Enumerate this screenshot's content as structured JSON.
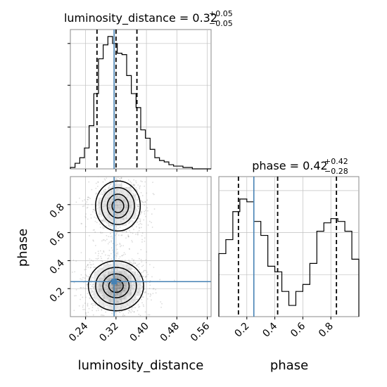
{
  "chart_data": [
    {
      "panel": "luminosity_distance-marginal",
      "type": "histogram",
      "title": {
        "prefix": "luminosity_distance = ",
        "value": "0.32",
        "plus": "+0.05",
        "minus": "−0.05"
      },
      "xlim": [
        0.2,
        0.57
      ],
      "ylim": [
        0,
        1.0
      ],
      "bins": [
        0.2,
        0.2123,
        0.2247,
        0.237,
        0.2493,
        0.2617,
        0.274,
        0.2863,
        0.2987,
        0.311,
        0.3233,
        0.3357,
        0.348,
        0.3603,
        0.3727,
        0.385,
        0.3973,
        0.4097,
        0.422,
        0.4343,
        0.4467,
        0.459,
        0.4713,
        0.4837,
        0.496,
        0.5083,
        0.5207,
        0.533,
        0.5453,
        0.5577,
        0.57
      ],
      "counts": [
        0.01,
        0.04,
        0.08,
        0.15,
        0.31,
        0.54,
        0.79,
        0.89,
        0.95,
        0.9,
        0.83,
        0.82,
        0.67,
        0.54,
        0.44,
        0.28,
        0.22,
        0.14,
        0.08,
        0.06,
        0.05,
        0.03,
        0.02,
        0.02,
        0.01,
        0.01,
        0.0,
        0.0,
        0.0,
        0.0
      ],
      "quantiles": [
        0.27,
        0.32,
        0.375
      ],
      "truth": 0.315,
      "xticks": [
        0.24,
        0.32,
        0.4,
        0.48,
        0.56
      ]
    },
    {
      "panel": "phase-marginal",
      "type": "histogram",
      "title": {
        "prefix": "phase = ",
        "value": "0.42",
        "plus": "+0.42",
        "minus": "−0.28"
      },
      "xlim": [
        0.0,
        1.0
      ],
      "ylim": [
        0,
        1.0
      ],
      "bins": [
        0.0,
        0.05,
        0.1,
        0.15,
        0.2,
        0.25,
        0.3,
        0.35,
        0.4,
        0.45,
        0.5,
        0.55,
        0.6,
        0.65,
        0.7,
        0.75,
        0.8,
        0.85,
        0.9,
        0.95,
        1.0
      ],
      "counts": [
        0.45,
        0.55,
        0.75,
        0.84,
        0.82,
        0.68,
        0.58,
        0.36,
        0.32,
        0.18,
        0.08,
        0.18,
        0.23,
        0.38,
        0.61,
        0.67,
        0.7,
        0.68,
        0.61,
        0.41
      ],
      "quantiles": [
        0.14,
        0.42,
        0.84
      ],
      "truth": 0.25,
      "xticks": [
        0.2,
        0.4,
        0.6,
        0.8
      ]
    },
    {
      "panel": "joint",
      "type": "scatter-contour",
      "xlabel": "luminosity_distance",
      "ylabel": "phase",
      "xlim": [
        0.2,
        0.57
      ],
      "ylim": [
        0.0,
        1.0
      ],
      "xticks": [
        0.24,
        0.32,
        0.4,
        0.48,
        0.56
      ],
      "yticks": [
        0.2,
        0.4,
        0.6,
        0.8
      ],
      "truth": {
        "x": 0.315,
        "y": 0.25
      },
      "modes": [
        {
          "x": 0.32,
          "y": 0.22,
          "sx": 0.032,
          "sy": 0.085,
          "weight": 0.6
        },
        {
          "x": 0.325,
          "y": 0.79,
          "sx": 0.028,
          "sy": 0.085,
          "weight": 0.4
        }
      ],
      "contour_levels": 4
    }
  ],
  "colors": {
    "truth": "#4682b4",
    "hist": "#000000",
    "grid": "#c0c0c0",
    "scatter": "#9a9a9a"
  }
}
